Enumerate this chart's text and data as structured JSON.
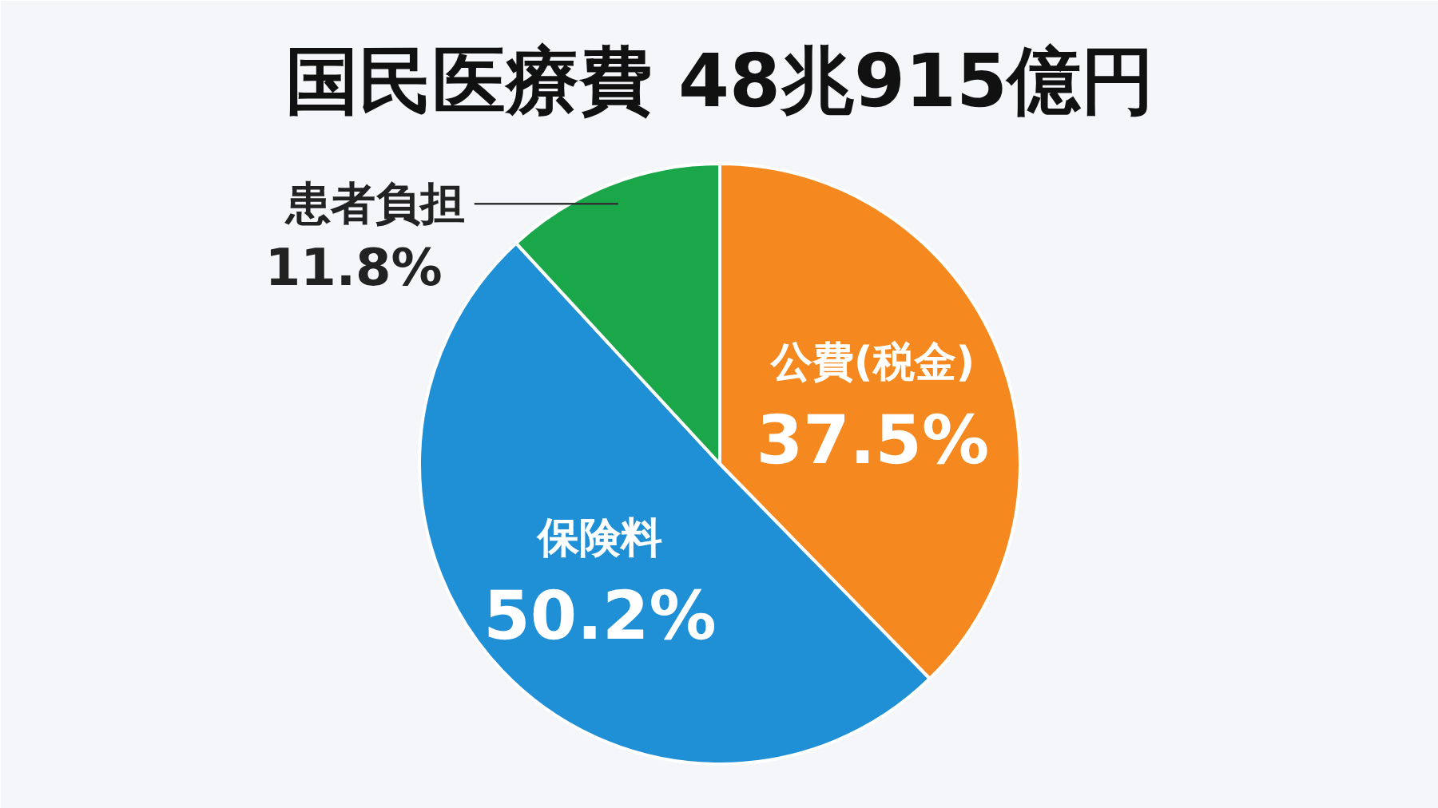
{
  "chart_data": {
    "type": "pie",
    "title": "国民医療費 48兆915億円",
    "categories": [
      "公費(税金)",
      "保険料",
      "患者負担"
    ],
    "values": [
      37.5,
      50.2,
      11.8
    ],
    "colors": [
      "#f5891f",
      "#1f8fd6",
      "#1aa74a"
    ],
    "value_labels": [
      "37.5%",
      "50.2%",
      "11.8%"
    ]
  }
}
